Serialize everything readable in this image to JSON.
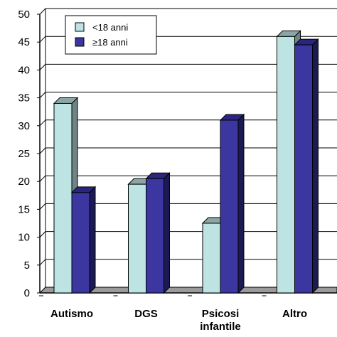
{
  "chart_data": {
    "type": "bar",
    "categories": [
      [
        "Autismo"
      ],
      [
        "DGS"
      ],
      [
        "Psicosi",
        "infantile"
      ],
      [
        "Altro"
      ]
    ],
    "series": [
      {
        "name": "<18 anni",
        "values": [
          34,
          19.5,
          12.5,
          46
        ],
        "color": "#bde3e3",
        "side_color": "#6f8484",
        "top_color": "#8aa6a6"
      },
      {
        "name": "≥18 anni",
        "values": [
          18,
          20.5,
          31,
          44.5
        ],
        "color": "#3b36a0",
        "side_color": "#1c1a55",
        "top_color": "#2a2680"
      }
    ],
    "ylim": [
      0,
      50
    ],
    "yticks": [
      0,
      5,
      10,
      15,
      20,
      25,
      30,
      35,
      40,
      45,
      50
    ],
    "grid": true,
    "legend_position": "top-left",
    "title": "",
    "xlabel": "",
    "ylabel": ""
  }
}
